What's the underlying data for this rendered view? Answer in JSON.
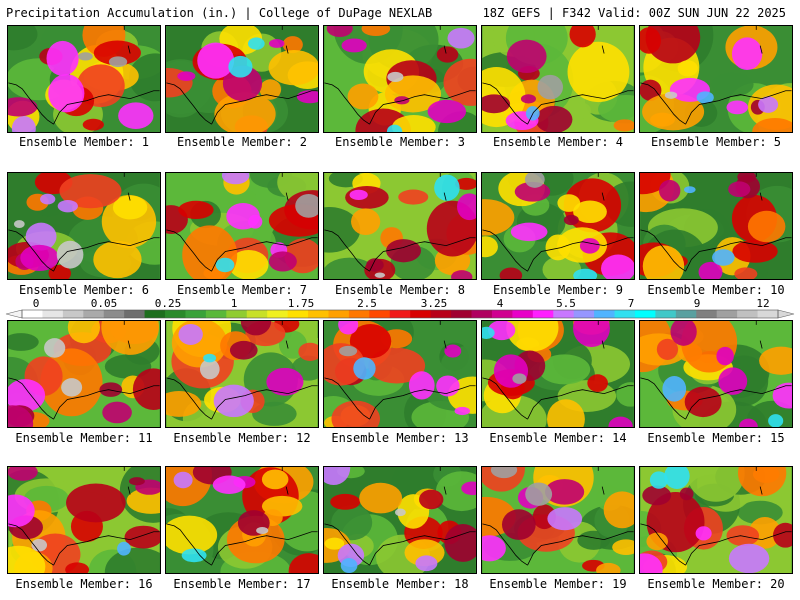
{
  "header": {
    "left": "Precipitation Accumulation (in.) | College of DuPage NEXLAB",
    "right": "18Z GEFS | F342 Valid: 00Z SUN JUN 22 2025"
  },
  "members": [
    {
      "label": "Ensemble Member: 1"
    },
    {
      "label": "Ensemble Member: 2"
    },
    {
      "label": "Ensemble Member: 3"
    },
    {
      "label": "Ensemble Member: 4"
    },
    {
      "label": "Ensemble Member: 5"
    },
    {
      "label": "Ensemble Member: 6"
    },
    {
      "label": "Ensemble Member: 7"
    },
    {
      "label": "Ensemble Member: 8"
    },
    {
      "label": "Ensemble Member: 9"
    },
    {
      "label": "Ensemble Member: 10"
    },
    {
      "label": "Ensemble Member: 11"
    },
    {
      "label": "Ensemble Member: 12"
    },
    {
      "label": "Ensemble Member: 13"
    },
    {
      "label": "Ensemble Member: 14"
    },
    {
      "label": "Ensemble Member: 15"
    },
    {
      "label": "Ensemble Member: 16"
    },
    {
      "label": "Ensemble Member: 17"
    },
    {
      "label": "Ensemble Member: 18"
    },
    {
      "label": "Ensemble Member: 19"
    },
    {
      "label": "Ensemble Member: 20"
    }
  ],
  "colorbar": {
    "labels": [
      "0",
      "0.05",
      "0.25",
      "1",
      "1.75",
      "2.5",
      "3.25",
      "4",
      "5.5",
      "7",
      "9",
      "12"
    ],
    "colors": [
      "#ffffff",
      "#e6e6e6",
      "#c8c8c8",
      "#aaaaaa",
      "#8c8c8c",
      "#6e6e6e",
      "#1e6e1e",
      "#2a8a2a",
      "#3aa23a",
      "#5ab83a",
      "#90cc30",
      "#c8e028",
      "#f0f020",
      "#ffe000",
      "#ffc000",
      "#ffa000",
      "#ff7800",
      "#ff4800",
      "#f01818",
      "#d80000",
      "#b80018",
      "#a00030",
      "#b00060",
      "#d00090",
      "#e800c8",
      "#ff20ff",
      "#c878ff",
      "#9696ff",
      "#50b4ff",
      "#30e0f0",
      "#00ffff",
      "#40c8c8",
      "#5aa0a0",
      "#808080",
      "#a0a0a0",
      "#c0c0c0",
      "#d8d8d8"
    ]
  }
}
